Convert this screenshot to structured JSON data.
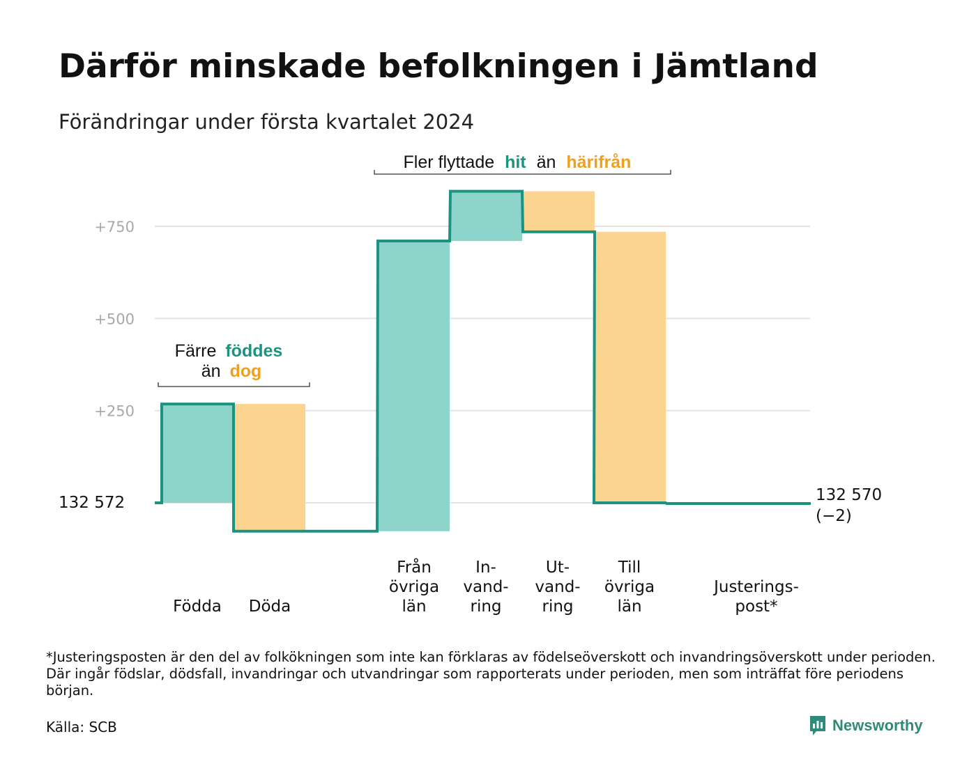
{
  "title": "Därför minskade befolkningen i Jämtland",
  "subtitle": "Förändringar under första kvartalet 2024",
  "colors": {
    "teal_line": "#1a9480",
    "teal_fill": "#8dd4ca",
    "orange_fill": "#fbd48f",
    "teal_text": "#1a9480",
    "orange_text": "#f0a020",
    "grid": "#e3e3e3",
    "tick_text": "#a8a8a8"
  },
  "chart_data": {
    "type": "waterfall",
    "start_value": 132572,
    "end_value": 132570,
    "start_label": "132   572",
    "end_label": "132 570",
    "end_change": "(−2)",
    "y_ticks": [
      "+250",
      "+500",
      "+750"
    ],
    "y_tick_values": [
      250,
      500,
      750
    ],
    "steps": [
      {
        "label": "Födda",
        "value": 268,
        "kind": "in"
      },
      {
        "label": "Döda",
        "value": -345,
        "kind": "out"
      },
      {
        "label": "",
        "value": 0,
        "kind": "gap"
      },
      {
        "label": "Från övriga län",
        "value": 787,
        "kind": "in"
      },
      {
        "label": "In-vandring",
        "value": 135,
        "kind": "in"
      },
      {
        "label": "Ut-vandring",
        "value": -110,
        "kind": "out"
      },
      {
        "label": "Till övriga län",
        "value": -735,
        "kind": "out"
      },
      {
        "label": "",
        "value": -2,
        "kind": "gap"
      },
      {
        "label": "Justerings-post*",
        "value": 0,
        "kind": "adj"
      }
    ],
    "tick_labels": [
      {
        "lines": [
          "Födda"
        ]
      },
      {
        "lines": [
          "Döda"
        ]
      },
      {
        "lines": [
          "Från",
          "övriga",
          "län"
        ]
      },
      {
        "lines": [
          "In-",
          "vand-",
          "ring"
        ]
      },
      {
        "lines": [
          "Ut-",
          "vand-",
          "ring"
        ]
      },
      {
        "lines": [
          "Till",
          "övriga",
          "län"
        ]
      },
      {
        "lines": [
          "Justerings-",
          "post*"
        ]
      }
    ],
    "annotations": {
      "births": {
        "line1_plain": "Färre",
        "line1_accent": "föddes",
        "line2_plain": "än",
        "line2_accent": "dog"
      },
      "migration": {
        "plain1": "Fler flyttade",
        "accent1": "hit",
        "plain2": "än",
        "accent2": "härifrån"
      }
    },
    "grid": true
  },
  "footnote": "*Justeringsposten är den del av folkökningen som inte kan förklaras av födelseöverskott och invandringsöverskott under perioden. Där ingår födslar, dödsfall, invandringar och utvandringar som rapporterats under perioden, men som inträffat före periodens början.",
  "source": "Källa: SCB",
  "brand": {
    "name": "Newsworthy",
    "icon": "newsworthy-logo-icon"
  }
}
